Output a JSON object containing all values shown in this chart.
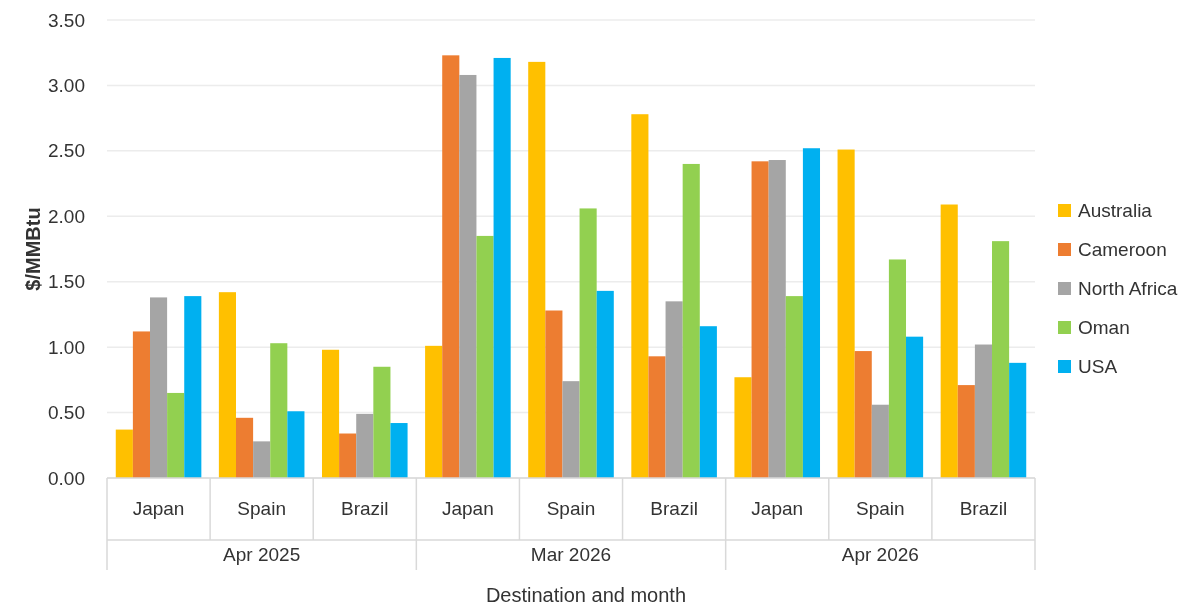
{
  "chart_data": {
    "type": "bar",
    "xlabel": "Destination and month",
    "ylabel": "$/MMBtu",
    "categories": [
      "Japan",
      "Spain",
      "Brazil",
      "Japan",
      "Spain",
      "Brazil",
      "Japan",
      "Spain",
      "Brazil"
    ],
    "annotations": [
      "Apr 2025",
      "Mar 2026",
      "Apr 2026"
    ],
    "series": [
      {
        "name": "Australia",
        "color": "#ffc000",
        "values": [
          0.37,
          1.42,
          0.98,
          1.01,
          3.18,
          2.78,
          0.77,
          2.51,
          2.09
        ]
      },
      {
        "name": "Cameroon",
        "color": "#ed7d31",
        "values": [
          1.12,
          0.46,
          0.34,
          3.23,
          1.28,
          0.93,
          2.42,
          0.97,
          0.71
        ]
      },
      {
        "name": "North Africa",
        "color": "#a5a5a5",
        "values": [
          1.38,
          0.28,
          0.49,
          3.08,
          0.74,
          1.35,
          2.43,
          0.56,
          1.02
        ]
      },
      {
        "name": "Oman",
        "color": "#92d050",
        "values": [
          0.65,
          1.03,
          0.85,
          1.85,
          2.06,
          2.4,
          1.39,
          1.67,
          1.81
        ]
      },
      {
        "name": "USA",
        "color": "#00b0f0",
        "values": [
          1.39,
          0.51,
          0.42,
          3.21,
          1.43,
          1.16,
          2.52,
          1.08,
          0.88
        ]
      }
    ],
    "ylim": [
      0,
      3.5
    ],
    "yticks": [
      {
        "value": 0,
        "label": "0.00"
      },
      {
        "value": 0.5,
        "label": "0.50"
      },
      {
        "value": 1,
        "label": "1.00"
      },
      {
        "value": 1.5,
        "label": "1.50"
      },
      {
        "value": 2,
        "label": "2.00"
      },
      {
        "value": 2.5,
        "label": "2.50"
      },
      {
        "value": 3,
        "label": "3.00"
      },
      {
        "value": 3.5,
        "label": "3.50"
      }
    ],
    "grid": "y",
    "legend": "right"
  }
}
